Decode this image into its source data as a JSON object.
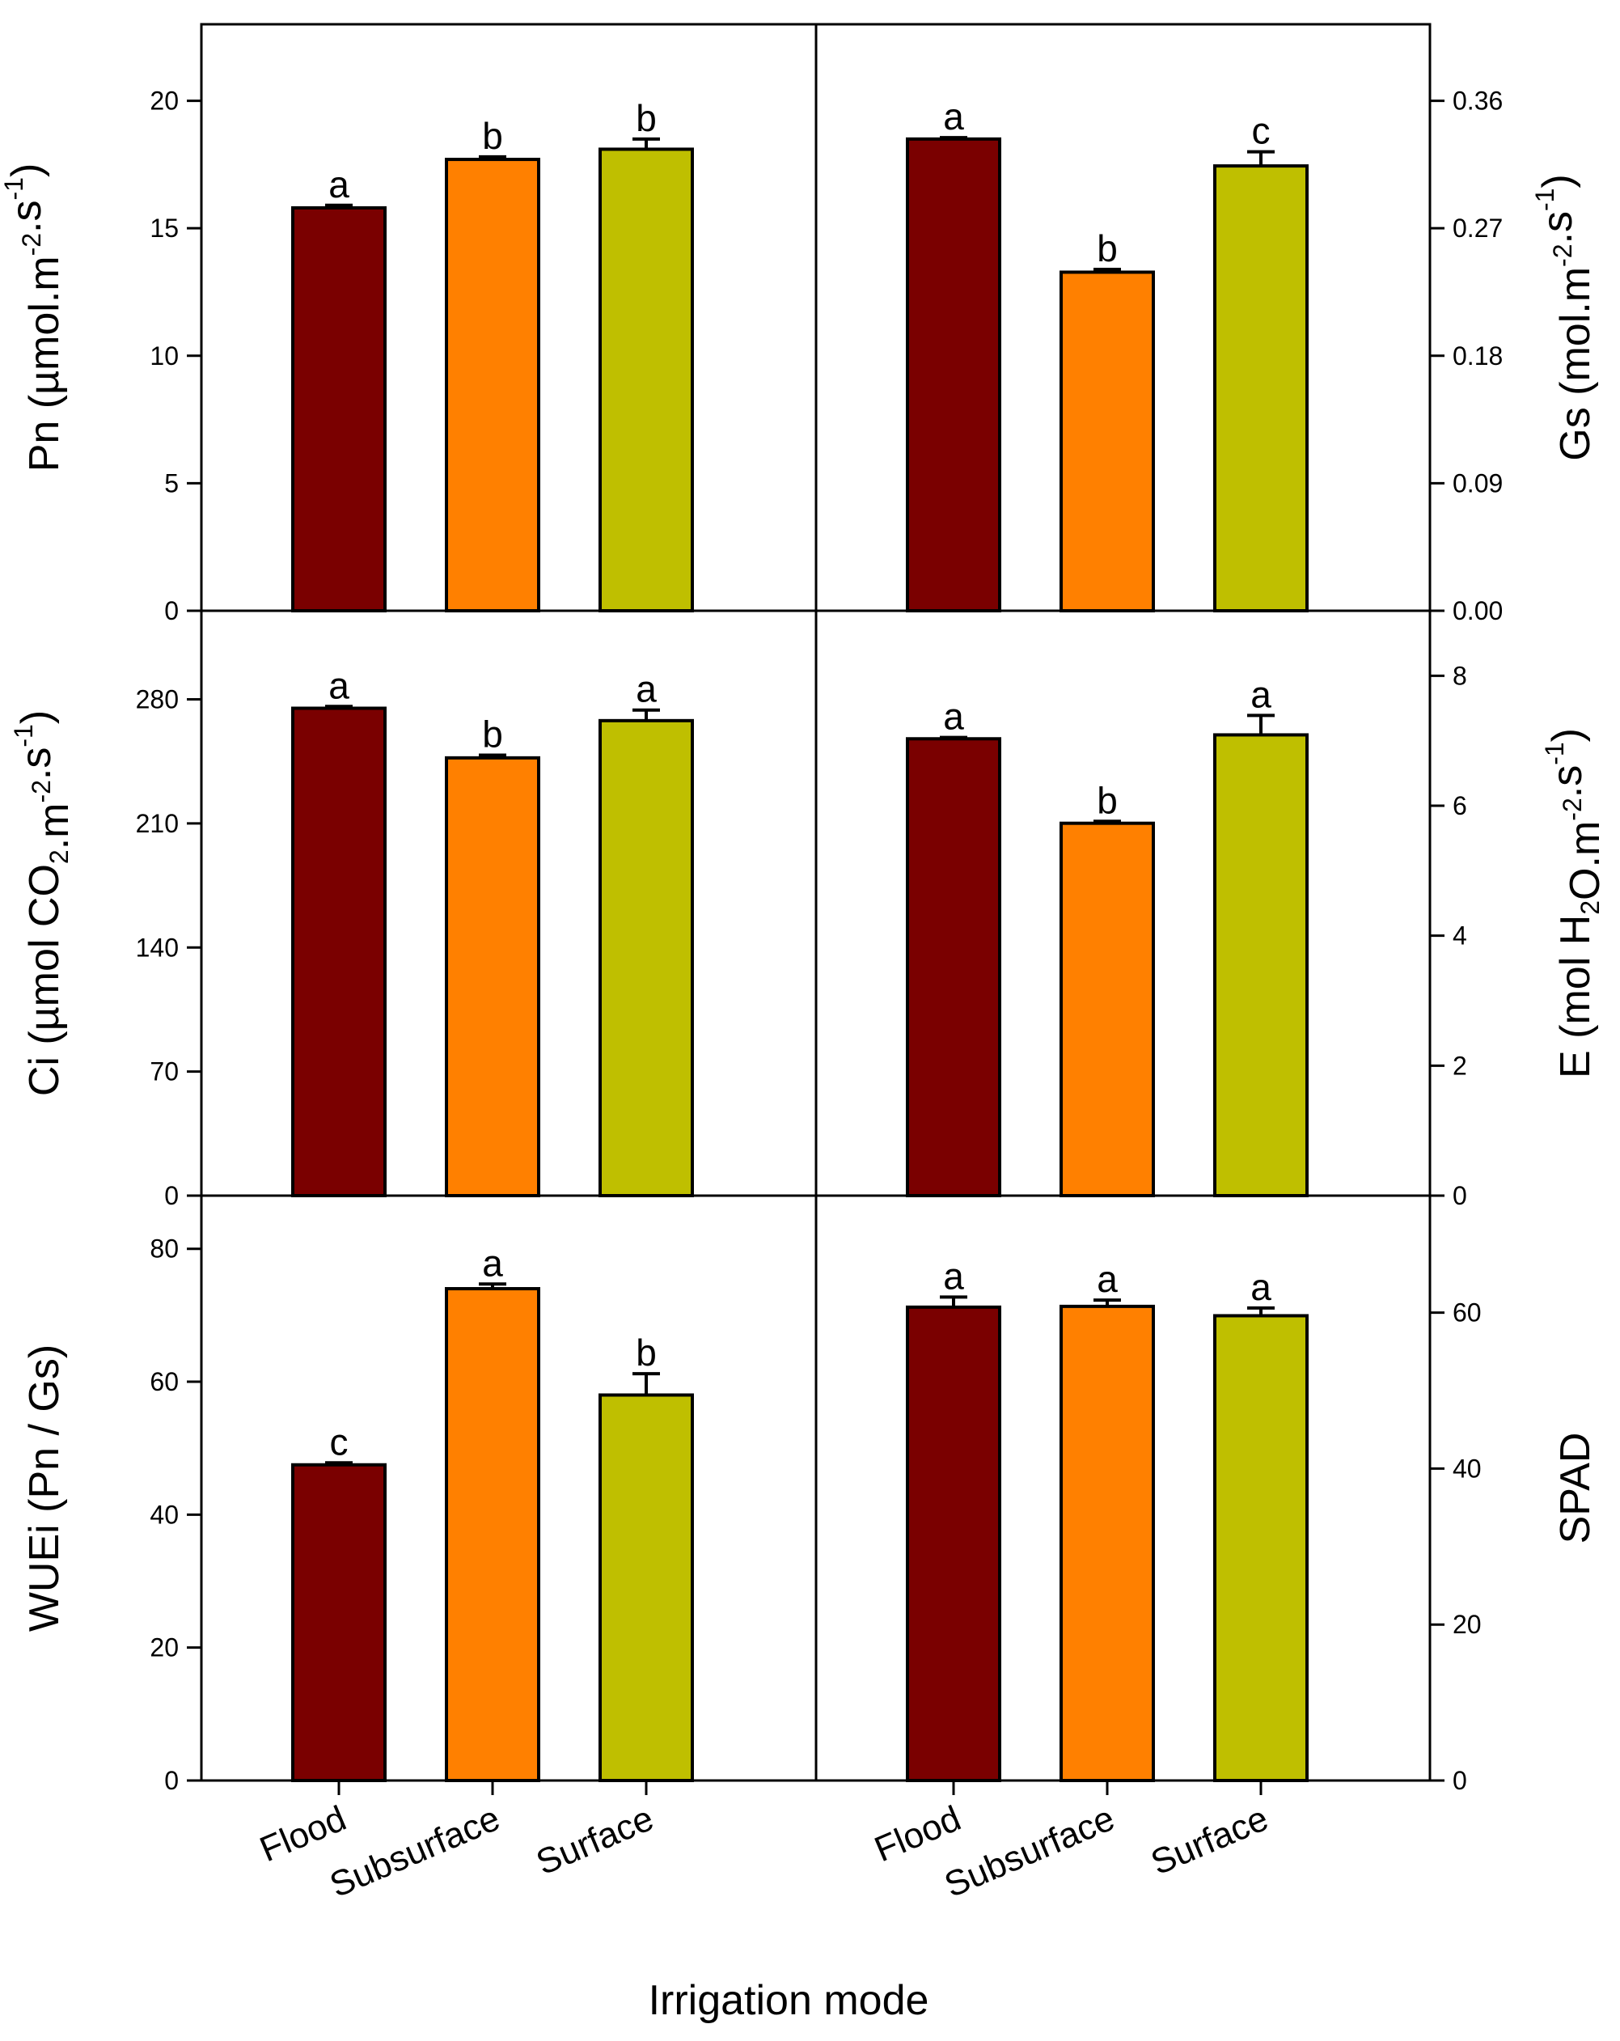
{
  "x_title": "Irrigation mode",
  "categories": [
    "Flood",
    "Subsurface",
    "Surface"
  ],
  "colors": {
    "Flood": "#7a0000",
    "Subsurface": "#ff8000",
    "Surface": "#bfbf00"
  },
  "chart_data": [
    {
      "type": "bar",
      "ylabel": "Pn (µmol.m-2.s-1)",
      "axis_side": "left",
      "ylim": [
        0,
        23
      ],
      "yticks": [
        "0",
        "5",
        "10",
        "15",
        "20"
      ],
      "categories": [
        "Flood",
        "Subsurface",
        "Surface"
      ],
      "values": [
        15.8,
        17.7,
        18.1
      ],
      "errors": [
        0.1,
        0.1,
        0.4
      ],
      "letters": [
        "a",
        "b",
        "b"
      ]
    },
    {
      "type": "bar",
      "ylabel": "Gs (mol.m-2.s-1)",
      "axis_side": "right",
      "ylim": [
        0,
        0.414
      ],
      "yticks": [
        "0.00",
        "0.09",
        "0.18",
        "0.27",
        "0.36"
      ],
      "categories": [
        "Flood",
        "Subsurface",
        "Surface"
      ],
      "values": [
        0.333,
        0.239,
        0.314
      ],
      "errors": [
        0.001,
        0.002,
        0.01
      ],
      "letters": [
        "a",
        "b",
        "c"
      ]
    },
    {
      "type": "bar",
      "ylabel": "Ci (µmol CO2.m-2.s-1)",
      "axis_side": "left",
      "ylim": [
        0,
        330
      ],
      "yticks": [
        "0",
        "70",
        "140",
        "210",
        "280"
      ],
      "categories": [
        "Flood",
        "Subsurface",
        "Surface"
      ],
      "values": [
        275,
        247,
        268
      ],
      "errors": [
        1,
        1.5,
        6
      ],
      "letters": [
        "a",
        "b",
        "a"
      ]
    },
    {
      "type": "bar",
      "ylabel": "E (mol H2O.m-2.s-1)",
      "axis_side": "right",
      "ylim": [
        0,
        9
      ],
      "yticks": [
        "0",
        "2",
        "4",
        "6",
        "8"
      ],
      "categories": [
        "Flood",
        "Subsurface",
        "Surface"
      ],
      "values": [
        7.03,
        5.73,
        7.09
      ],
      "errors": [
        0.02,
        0.03,
        0.3
      ],
      "letters": [
        "a",
        "b",
        "a"
      ]
    },
    {
      "type": "bar",
      "ylabel": "WUEi (Pn / Gs)",
      "axis_side": "left",
      "ylim": [
        0,
        88
      ],
      "yticks": [
        "0",
        "20",
        "40",
        "60",
        "80"
      ],
      "categories": [
        "Flood",
        "Subsurface",
        "Surface"
      ],
      "values": [
        47.5,
        74,
        58
      ],
      "errors": [
        0.3,
        0.7,
        3.2
      ],
      "letters": [
        "c",
        "a",
        "b"
      ]
    },
    {
      "type": "bar",
      "ylabel": "SPAD",
      "axis_side": "right",
      "ylim": [
        0,
        75
      ],
      "yticks": [
        "0",
        "20",
        "40",
        "60"
      ],
      "categories": [
        "Flood",
        "Subsurface",
        "Surface"
      ],
      "values": [
        60.7,
        60.8,
        59.6
      ],
      "errors": [
        1.3,
        0.8,
        1.0
      ],
      "letters": [
        "a",
        "a",
        "a"
      ]
    }
  ]
}
